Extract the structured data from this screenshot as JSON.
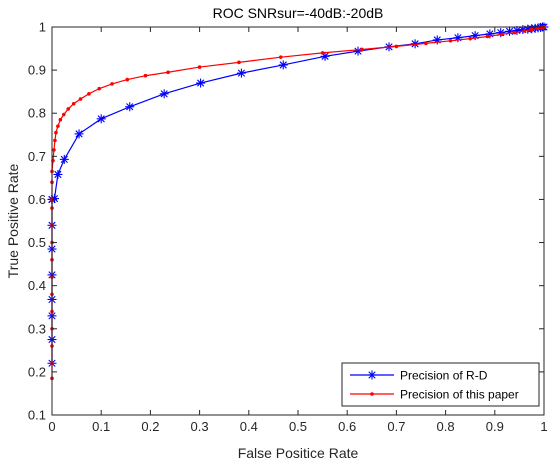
{
  "chart_data": {
    "type": "line",
    "title": "ROC SNRsur=-40dB:-20dB",
    "xlabel": "False Positice Rate",
    "ylabel": "True Positive Rate",
    "xlim": [
      0,
      1
    ],
    "ylim": [
      0.1,
      1
    ],
    "xticks": [
      "0",
      "0.1",
      "0.2",
      "0.3",
      "0.4",
      "0.5",
      "0.6",
      "0.7",
      "0.8",
      "0.9",
      "1"
    ],
    "yticks": [
      "0.1",
      "0.2",
      "0.3",
      "0.4",
      "0.5",
      "0.6",
      "0.7",
      "0.8",
      "0.9",
      "1"
    ],
    "grid": false,
    "legend_position": "bottom-right",
    "series": [
      {
        "name": "Precision of R-D",
        "color": "#0000ff",
        "marker": "asterisk",
        "x": [
          0.0,
          0.0,
          0.0,
          0.0,
          0.0,
          0.0,
          0.0,
          0.0,
          0.0,
          0.0,
          0.005,
          0.012,
          0.025,
          0.055,
          0.1,
          0.158,
          0.228,
          0.302,
          0.385,
          0.47,
          0.555,
          0.622,
          0.685,
          0.738,
          0.783,
          0.825,
          0.86,
          0.89,
          0.912,
          0.93,
          0.945,
          0.957,
          0.967,
          0.975,
          0.982,
          0.988,
          0.993,
          0.997,
          1.0
        ],
        "y": [
          0.22,
          0.275,
          0.33,
          0.368,
          0.425,
          0.485,
          0.54,
          0.6,
          0.6,
          0.6,
          0.602,
          0.658,
          0.693,
          0.752,
          0.787,
          0.815,
          0.845,
          0.87,
          0.893,
          0.912,
          0.932,
          0.944,
          0.954,
          0.961,
          0.97,
          0.975,
          0.98,
          0.984,
          0.987,
          0.99,
          0.992,
          0.994,
          0.995,
          0.996,
          0.997,
          0.998,
          0.999,
          1.0,
          1.0
        ]
      },
      {
        "name": "Precision of this paper",
        "color": "#ff0000",
        "marker": "point",
        "x": [
          0.0,
          0.0,
          0.0,
          0.0,
          0.0,
          0.0,
          0.0,
          0.0,
          0.0,
          0.0,
          0.0,
          0.0,
          0.0,
          0.0,
          0.002,
          0.004,
          0.006,
          0.008,
          0.012,
          0.017,
          0.024,
          0.033,
          0.044,
          0.058,
          0.075,
          0.096,
          0.122,
          0.153,
          0.19,
          0.236,
          0.3,
          0.38,
          0.465,
          0.55,
          0.63,
          0.7,
          0.76,
          0.81,
          0.85,
          0.885,
          0.915,
          0.94,
          0.96,
          0.975,
          0.987,
          0.995,
          1.0
        ],
        "y": [
          0.185,
          0.22,
          0.26,
          0.3,
          0.34,
          0.38,
          0.42,
          0.46,
          0.5,
          0.54,
          0.58,
          0.6,
          0.64,
          0.665,
          0.69,
          0.715,
          0.737,
          0.755,
          0.77,
          0.785,
          0.797,
          0.81,
          0.822,
          0.833,
          0.845,
          0.857,
          0.868,
          0.878,
          0.887,
          0.895,
          0.907,
          0.918,
          0.93,
          0.94,
          0.948,
          0.955,
          0.962,
          0.968,
          0.973,
          0.978,
          0.983,
          0.987,
          0.991,
          0.994,
          0.997,
          0.999,
          1.0
        ]
      }
    ]
  }
}
